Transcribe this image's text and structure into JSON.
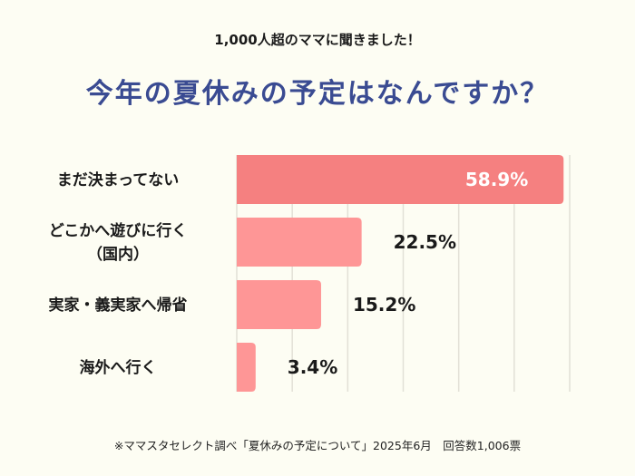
{
  "header": {
    "subtitle": "1,000人超のママに聞きました！",
    "title": "今年の夏休みの予定はなんですか？"
  },
  "footnote": "※ママスタセレクト調べ「夏休みの予定について」2025年6月　回答数1,006票",
  "chart_data": {
    "type": "bar",
    "orientation": "horizontal",
    "categories": [
      "まだ決まってない",
      "どこかへ遊びに行く\n（国内）",
      "実家・義実家へ帰省",
      "海外へ行く"
    ],
    "values": [
      58.9,
      22.5,
      15.2,
      3.4
    ],
    "data_labels": [
      "58.9%",
      "22.5%",
      "15.2%",
      "3.4%"
    ],
    "xlim": [
      0,
      60
    ],
    "grid": true,
    "grid_step": 10,
    "colors": {
      "highlight": "#f58080",
      "bar": "#fe9696",
      "grid": "#e2e0d6",
      "title": "#3a4b92"
    }
  }
}
